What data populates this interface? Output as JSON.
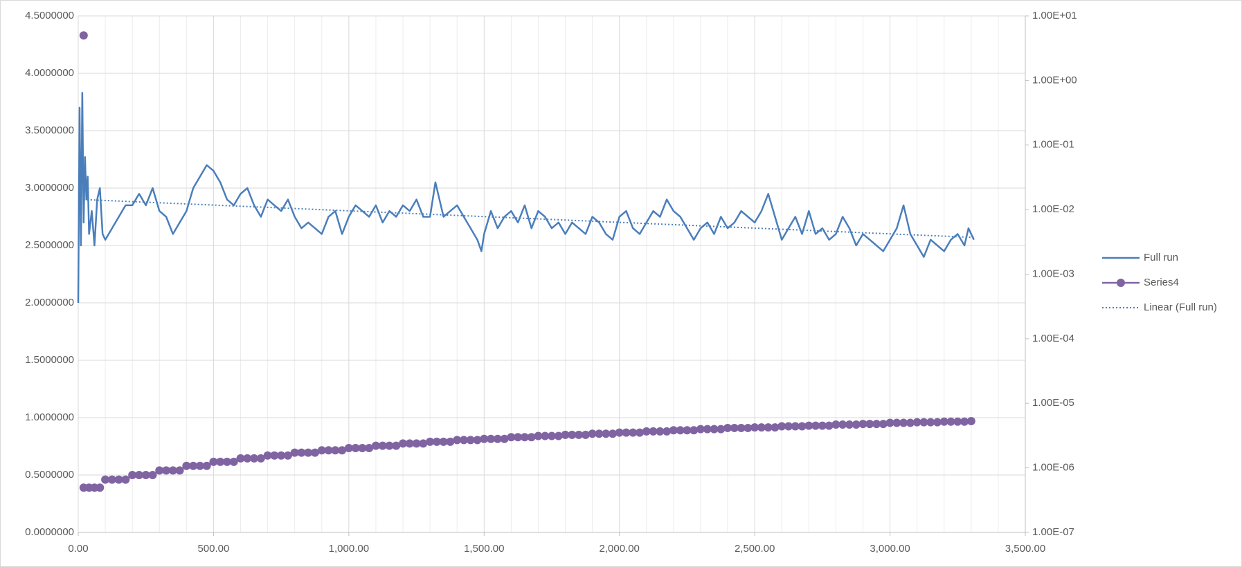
{
  "chart_data": {
    "type": "line",
    "xlim": [
      0,
      3500
    ],
    "xticks": [
      {
        "value": 0,
        "label": "0.00"
      },
      {
        "value": 500,
        "label": "500.00"
      },
      {
        "value": 1000,
        "label": "1,000.00"
      },
      {
        "value": 1500,
        "label": "1,500.00"
      },
      {
        "value": 2000,
        "label": "2,000.00"
      },
      {
        "value": 2500,
        "label": "2,500.00"
      },
      {
        "value": 3000,
        "label": "3,000.00"
      },
      {
        "value": 3500,
        "label": "3,500.00"
      }
    ],
    "xminorticks": [
      100,
      200,
      300,
      400,
      600,
      700,
      800,
      900,
      1100,
      1200,
      1300,
      1400,
      1600,
      1700,
      1800,
      1900,
      2100,
      2200,
      2300,
      2400,
      2600,
      2700,
      2800,
      2900,
      3100,
      3200,
      3300,
      3400
    ],
    "ylim": [
      0,
      4.5
    ],
    "yticks": [
      {
        "value": 0,
        "label": "0.0000000"
      },
      {
        "value": 0.5,
        "label": "0.5000000"
      },
      {
        "value": 1,
        "label": "1.0000000"
      },
      {
        "value": 1.5,
        "label": "1.5000000"
      },
      {
        "value": 2,
        "label": "2.0000000"
      },
      {
        "value": 2.5,
        "label": "2.5000000"
      },
      {
        "value": 3,
        "label": "3.0000000"
      },
      {
        "value": 3.5,
        "label": "3.5000000"
      },
      {
        "value": 4,
        "label": "4.0000000"
      },
      {
        "value": 4.5,
        "label": "4.5000000"
      }
    ],
    "y2lim": [
      1e-07,
      10
    ],
    "y2log": true,
    "y2ticks": [
      {
        "value": 1e-07,
        "label": "1.00E-07"
      },
      {
        "value": 1e-06,
        "label": "1.00E-06"
      },
      {
        "value": 1e-05,
        "label": "1.00E-05"
      },
      {
        "value": 0.0001,
        "label": "1.00E-04"
      },
      {
        "value": 0.001,
        "label": "1.00E-03"
      },
      {
        "value": 0.01,
        "label": "1.00E-02"
      },
      {
        "value": 0.1,
        "label": "1.00E-01"
      },
      {
        "value": 1,
        "label": "1.00E+00"
      },
      {
        "value": 10,
        "label": "1.00E+01"
      }
    ],
    "grid": true,
    "legend": "right",
    "series": [
      {
        "name": "Full run",
        "color": "#4a7ebb",
        "style": "solid",
        "marker": false,
        "x": [
          0,
          5,
          10,
          15,
          20,
          25,
          30,
          35,
          40,
          50,
          60,
          70,
          80,
          90,
          100,
          125,
          150,
          175,
          200,
          225,
          250,
          275,
          300,
          325,
          350,
          375,
          400,
          425,
          450,
          475,
          500,
          525,
          550,
          575,
          600,
          625,
          650,
          675,
          700,
          725,
          750,
          775,
          800,
          825,
          850,
          875,
          900,
          925,
          950,
          975,
          1000,
          1025,
          1050,
          1075,
          1100,
          1125,
          1150,
          1175,
          1200,
          1225,
          1250,
          1275,
          1300,
          1320,
          1350,
          1375,
          1400,
          1425,
          1450,
          1475,
          1490,
          1500,
          1525,
          1550,
          1575,
          1600,
          1625,
          1650,
          1675,
          1700,
          1725,
          1750,
          1775,
          1800,
          1825,
          1850,
          1875,
          1900,
          1925,
          1950,
          1975,
          2000,
          2025,
          2050,
          2075,
          2100,
          2125,
          2150,
          2175,
          2200,
          2225,
          2250,
          2275,
          2300,
          2325,
          2350,
          2375,
          2400,
          2425,
          2450,
          2475,
          2500,
          2525,
          2550,
          2575,
          2600,
          2625,
          2650,
          2675,
          2700,
          2725,
          2750,
          2775,
          2800,
          2825,
          2850,
          2875,
          2900,
          2925,
          2950,
          2975,
          3000,
          3025,
          3050,
          3075,
          3100,
          3125,
          3150,
          3175,
          3200,
          3225,
          3250,
          3275,
          3290,
          3310
        ],
        "values": [
          2.0,
          3.7,
          2.5,
          3.83,
          2.7,
          3.27,
          2.9,
          3.1,
          2.6,
          2.8,
          2.5,
          2.9,
          3.0,
          2.6,
          2.55,
          2.65,
          2.75,
          2.85,
          2.85,
          2.95,
          2.85,
          3.0,
          2.8,
          2.75,
          2.6,
          2.7,
          2.8,
          3.0,
          3.1,
          3.2,
          3.15,
          3.05,
          2.9,
          2.85,
          2.95,
          3.0,
          2.85,
          2.75,
          2.9,
          2.85,
          2.8,
          2.9,
          2.75,
          2.65,
          2.7,
          2.65,
          2.6,
          2.75,
          2.8,
          2.6,
          2.75,
          2.85,
          2.8,
          2.75,
          2.85,
          2.7,
          2.8,
          2.75,
          2.85,
          2.8,
          2.9,
          2.75,
          2.75,
          3.05,
          2.75,
          2.8,
          2.85,
          2.75,
          2.65,
          2.55,
          2.45,
          2.6,
          2.8,
          2.65,
          2.75,
          2.8,
          2.7,
          2.85,
          2.65,
          2.8,
          2.75,
          2.65,
          2.7,
          2.6,
          2.7,
          2.65,
          2.6,
          2.75,
          2.7,
          2.6,
          2.55,
          2.75,
          2.8,
          2.65,
          2.6,
          2.7,
          2.8,
          2.75,
          2.9,
          2.8,
          2.75,
          2.65,
          2.55,
          2.65,
          2.7,
          2.6,
          2.75,
          2.65,
          2.7,
          2.8,
          2.75,
          2.7,
          2.8,
          2.95,
          2.75,
          2.55,
          2.65,
          2.75,
          2.6,
          2.8,
          2.6,
          2.65,
          2.55,
          2.6,
          2.75,
          2.65,
          2.5,
          2.6,
          2.55,
          2.5,
          2.45,
          2.55,
          2.65,
          2.85,
          2.6,
          2.5,
          2.4,
          2.55,
          2.5,
          2.45,
          2.55,
          2.6,
          2.5,
          2.65,
          2.55
        ]
      },
      {
        "name": "Series4",
        "color": "#8064a2",
        "style": "none",
        "marker": true,
        "x": [
          20,
          20,
          40,
          60,
          80,
          100,
          125,
          150,
          175,
          200,
          225,
          250,
          275,
          300,
          325,
          350,
          375,
          400,
          425,
          450,
          475,
          500,
          525,
          550,
          575,
          600,
          625,
          650,
          675,
          700,
          725,
          750,
          775,
          800,
          825,
          850,
          875,
          900,
          925,
          950,
          975,
          1000,
          1025,
          1050,
          1075,
          1100,
          1125,
          1150,
          1175,
          1200,
          1225,
          1250,
          1275,
          1300,
          1325,
          1350,
          1375,
          1400,
          1425,
          1450,
          1475,
          1500,
          1525,
          1550,
          1575,
          1600,
          1625,
          1650,
          1675,
          1700,
          1725,
          1750,
          1775,
          1800,
          1825,
          1850,
          1875,
          1900,
          1925,
          1950,
          1975,
          2000,
          2025,
          2050,
          2075,
          2100,
          2125,
          2150,
          2175,
          2200,
          2225,
          2250,
          2275,
          2300,
          2325,
          2350,
          2375,
          2400,
          2425,
          2450,
          2475,
          2500,
          2525,
          2550,
          2575,
          2600,
          2625,
          2650,
          2675,
          2700,
          2725,
          2750,
          2775,
          2800,
          2825,
          2850,
          2875,
          2900,
          2925,
          2950,
          2975,
          3000,
          3025,
          3050,
          3075,
          3100,
          3125,
          3150,
          3175,
          3200,
          3225,
          3250,
          3275,
          3300
        ],
        "values": [
          4.33,
          0.39,
          0.39,
          0.39,
          0.39,
          0.46,
          0.46,
          0.46,
          0.46,
          0.5,
          0.5,
          0.5,
          0.5,
          0.54,
          0.54,
          0.54,
          0.54,
          0.58,
          0.58,
          0.58,
          0.58,
          0.615,
          0.615,
          0.615,
          0.615,
          0.645,
          0.645,
          0.645,
          0.645,
          0.67,
          0.67,
          0.67,
          0.67,
          0.695,
          0.695,
          0.695,
          0.695,
          0.715,
          0.715,
          0.715,
          0.715,
          0.735,
          0.735,
          0.735,
          0.735,
          0.755,
          0.755,
          0.755,
          0.755,
          0.775,
          0.775,
          0.775,
          0.775,
          0.79,
          0.79,
          0.79,
          0.79,
          0.805,
          0.805,
          0.805,
          0.805,
          0.815,
          0.815,
          0.815,
          0.815,
          0.83,
          0.83,
          0.83,
          0.83,
          0.84,
          0.84,
          0.84,
          0.84,
          0.85,
          0.85,
          0.85,
          0.85,
          0.86,
          0.86,
          0.86,
          0.86,
          0.87,
          0.87,
          0.87,
          0.87,
          0.88,
          0.88,
          0.88,
          0.88,
          0.89,
          0.89,
          0.89,
          0.89,
          0.9,
          0.9,
          0.9,
          0.9,
          0.91,
          0.91,
          0.91,
          0.91,
          0.915,
          0.915,
          0.915,
          0.915,
          0.925,
          0.925,
          0.925,
          0.925,
          0.93,
          0.93,
          0.93,
          0.93,
          0.94,
          0.94,
          0.94,
          0.94,
          0.945,
          0.945,
          0.945,
          0.945,
          0.955,
          0.955,
          0.955,
          0.955,
          0.96,
          0.96,
          0.96,
          0.96,
          0.965,
          0.965,
          0.965,
          0.965,
          0.97
        ]
      },
      {
        "name": "Linear (Full run)",
        "color": "#4a7ebb",
        "style": "dotted",
        "marker": false,
        "x": [
          20,
          3310
        ],
        "values": [
          2.9,
          2.57
        ]
      }
    ]
  }
}
